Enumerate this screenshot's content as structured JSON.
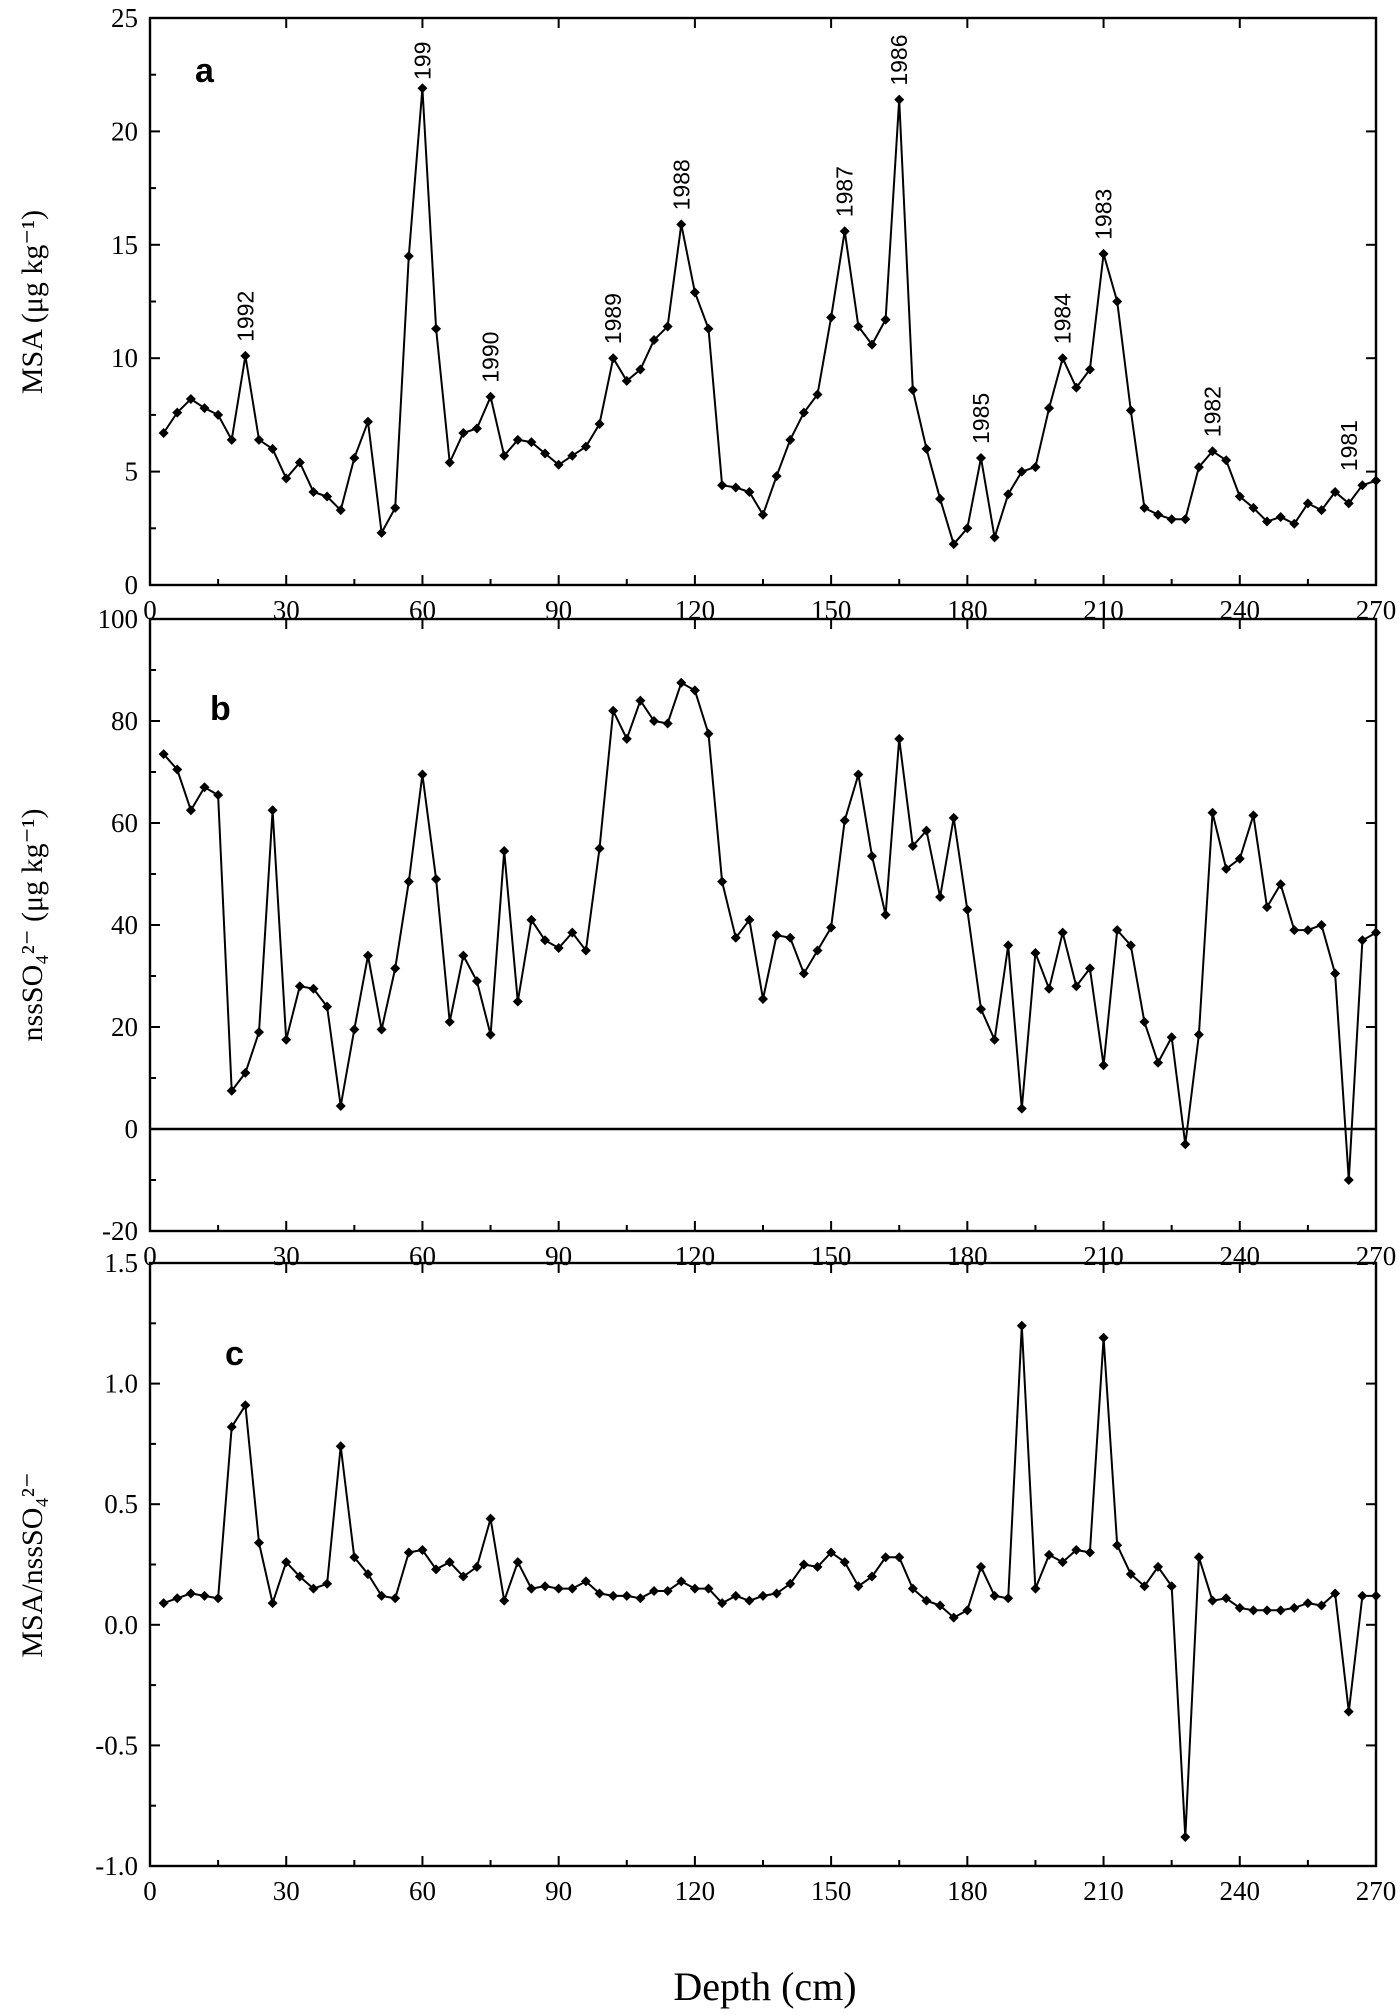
{
  "figure": {
    "xlabel": "Depth (cm)"
  },
  "chart_data": [
    {
      "type": "line",
      "panel": "a",
      "xlabel": "",
      "ylabel": "MSA (μg kg⁻¹)",
      "xlim": [
        0,
        270
      ],
      "ylim": [
        0,
        25
      ],
      "xticks": [
        0,
        30,
        60,
        90,
        120,
        150,
        180,
        210,
        240,
        270
      ],
      "yticks": [
        0,
        5,
        10,
        15,
        20,
        25
      ],
      "ytick_labels": [
        "0",
        "5",
        "10",
        "15",
        "20",
        "25"
      ],
      "series": [
        {
          "x": [
            3,
            6,
            9,
            12,
            15,
            18,
            21,
            24,
            27,
            30,
            33,
            36,
            39,
            42,
            45,
            48,
            51,
            54,
            57,
            60,
            63,
            66,
            69,
            72,
            75,
            78,
            81,
            84,
            87,
            90,
            93,
            96,
            99,
            102,
            105,
            108,
            111,
            114,
            117,
            120,
            123,
            126,
            129,
            132,
            135,
            138,
            141,
            144,
            147,
            150,
            153,
            156,
            159,
            162,
            165,
            168,
            171,
            174,
            177,
            180,
            183,
            186,
            189,
            192,
            195,
            198,
            201,
            204,
            207,
            210,
            213,
            216,
            219,
            222,
            225,
            228,
            231,
            234,
            237,
            240,
            243,
            246,
            249,
            252,
            255,
            258,
            261,
            264,
            267,
            270
          ],
          "y": [
            6.7,
            7.6,
            8.2,
            7.8,
            7.5,
            6.4,
            10.1,
            6.4,
            6.0,
            4.7,
            5.4,
            4.1,
            3.9,
            3.3,
            5.6,
            7.2,
            2.3,
            3.4,
            14.5,
            21.9,
            11.3,
            5.4,
            6.7,
            6.9,
            8.3,
            5.7,
            6.4,
            6.3,
            5.8,
            5.3,
            5.7,
            6.1,
            7.1,
            10.0,
            9.0,
            9.5,
            10.8,
            11.4,
            15.9,
            12.9,
            11.3,
            4.4,
            4.3,
            4.1,
            3.1,
            4.8,
            6.4,
            7.6,
            8.4,
            11.8,
            15.6,
            11.4,
            10.6,
            11.7,
            21.4,
            8.6,
            6.0,
            3.8,
            1.8,
            2.5,
            5.6,
            2.1,
            4.0,
            5.0,
            5.2,
            7.8,
            10.0,
            8.7,
            9.5,
            14.6,
            12.5,
            7.7,
            3.4,
            3.1,
            2.9,
            2.9,
            5.2,
            5.9,
            5.5,
            3.9,
            3.4,
            2.8,
            3.0,
            2.7,
            3.6,
            3.3,
            4.1,
            3.6,
            4.4,
            4.6
          ]
        }
      ],
      "annotations": [
        {
          "text": "1992",
          "x": 21,
          "y": 10.1
        },
        {
          "text": "199",
          "x": 60,
          "y": 21.9
        },
        {
          "text": "1990",
          "x": 75,
          "y": 8.3
        },
        {
          "text": "1989",
          "x": 102,
          "y": 10.0
        },
        {
          "text": "1988",
          "x": 117,
          "y": 15.9
        },
        {
          "text": "1987",
          "x": 153,
          "y": 15.6
        },
        {
          "text": "1986",
          "x": 165,
          "y": 21.4
        },
        {
          "text": "1985",
          "x": 183,
          "y": 5.6
        },
        {
          "text": "1984",
          "x": 201,
          "y": 10.0
        },
        {
          "text": "1983",
          "x": 210,
          "y": 14.6
        },
        {
          "text": "1982",
          "x": 234,
          "y": 5.9
        },
        {
          "text": "1981",
          "x": 264,
          "y": 4.4
        }
      ]
    },
    {
      "type": "line",
      "panel": "b",
      "xlabel": "",
      "ylabel": "nssSO₄²⁻ (μg kg⁻¹)",
      "xlim": [
        0,
        270
      ],
      "ylim": [
        -20,
        100
      ],
      "xticks": [
        0,
        30,
        60,
        90,
        120,
        150,
        180,
        210,
        240,
        270
      ],
      "yticks": [
        -20,
        0,
        20,
        40,
        60,
        80,
        100
      ],
      "ytick_labels": [
        "-20",
        "0",
        "20",
        "40",
        "60",
        "80",
        "100"
      ],
      "zero_line": true,
      "series": [
        {
          "x": [
            3,
            6,
            9,
            12,
            15,
            18,
            21,
            24,
            27,
            30,
            33,
            36,
            39,
            42,
            45,
            48,
            51,
            54,
            57,
            60,
            63,
            66,
            69,
            72,
            75,
            78,
            81,
            84,
            87,
            90,
            93,
            96,
            99,
            102,
            105,
            108,
            111,
            114,
            117,
            120,
            123,
            126,
            129,
            132,
            135,
            138,
            141,
            144,
            147,
            150,
            153,
            156,
            159,
            162,
            165,
            168,
            171,
            174,
            177,
            180,
            183,
            186,
            189,
            192,
            195,
            198,
            201,
            204,
            207,
            210,
            213,
            216,
            219,
            222,
            225,
            228,
            231,
            234,
            237,
            240,
            243,
            246,
            249,
            252,
            255,
            258,
            261,
            264,
            267,
            270
          ],
          "y": [
            73.5,
            70.5,
            62.5,
            67,
            65.5,
            7.5,
            11,
            19,
            62.5,
            17.5,
            28,
            27.5,
            24,
            4.5,
            19.5,
            34,
            19.5,
            31.5,
            48.5,
            69.5,
            49,
            21,
            34,
            29,
            18.5,
            54.5,
            25,
            41,
            37,
            35.5,
            38.5,
            35,
            55,
            82,
            76.5,
            84,
            80,
            79.5,
            87.5,
            86,
            77.5,
            48.5,
            37.5,
            41,
            25.5,
            38,
            37.5,
            30.5,
            35,
            39.5,
            60.5,
            69.5,
            53.5,
            42,
            76.5,
            55.5,
            58.5,
            45.5,
            61,
            43,
            23.5,
            17.5,
            36,
            4,
            34.5,
            27.5,
            38.5,
            28,
            31.5,
            12.5,
            39,
            36,
            21,
            13,
            18,
            -3,
            18.5,
            62,
            51,
            53,
            61.5,
            43.5,
            48,
            39,
            39,
            40,
            30.5,
            -10,
            37,
            38.5
          ]
        }
      ]
    },
    {
      "type": "line",
      "panel": "c",
      "xlabel": "Depth (cm)",
      "ylabel": "MSA/nssSO₄²⁻",
      "xlim": [
        0,
        270
      ],
      "ylim": [
        -1.0,
        1.5
      ],
      "xticks": [
        0,
        30,
        60,
        90,
        120,
        150,
        180,
        210,
        240,
        270
      ],
      "yticks": [
        -1.0,
        -0.5,
        0.0,
        0.5,
        1.0,
        1.5
      ],
      "ytick_labels": [
        "-1.0",
        "-0.5",
        "0.0",
        "0.5",
        "1.0",
        "1.5"
      ],
      "series": [
        {
          "x": [
            3,
            6,
            9,
            12,
            15,
            18,
            21,
            24,
            27,
            30,
            33,
            36,
            39,
            42,
            45,
            48,
            51,
            54,
            57,
            60,
            63,
            66,
            69,
            72,
            75,
            78,
            81,
            84,
            87,
            90,
            93,
            96,
            99,
            102,
            105,
            108,
            111,
            114,
            117,
            120,
            123,
            126,
            129,
            132,
            135,
            138,
            141,
            144,
            147,
            150,
            153,
            156,
            159,
            162,
            165,
            168,
            171,
            174,
            177,
            180,
            183,
            186,
            189,
            192,
            195,
            198,
            201,
            204,
            207,
            210,
            213,
            216,
            219,
            222,
            225,
            228,
            231,
            234,
            237,
            240,
            243,
            246,
            249,
            252,
            255,
            258,
            261,
            264,
            267,
            270
          ],
          "y": [
            0.09,
            0.11,
            0.13,
            0.12,
            0.11,
            0.82,
            0.91,
            0.34,
            0.09,
            0.26,
            0.2,
            0.15,
            0.17,
            0.74,
            0.28,
            0.21,
            0.12,
            0.11,
            0.3,
            0.31,
            0.23,
            0.26,
            0.2,
            0.24,
            0.44,
            0.1,
            0.26,
            0.15,
            0.16,
            0.15,
            0.15,
            0.18,
            0.13,
            0.12,
            0.12,
            0.11,
            0.14,
            0.14,
            0.18,
            0.15,
            0.15,
            0.09,
            0.12,
            0.1,
            0.12,
            0.13,
            0.17,
            0.25,
            0.24,
            0.3,
            0.26,
            0.16,
            0.2,
            0.28,
            0.28,
            0.15,
            0.1,
            0.08,
            0.03,
            0.06,
            0.24,
            0.12,
            0.11,
            1.24,
            0.15,
            0.29,
            0.26,
            0.31,
            0.3,
            1.19,
            0.33,
            0.21,
            0.16,
            0.24,
            0.16,
            -0.88,
            0.28,
            0.1,
            0.11,
            0.07,
            0.06,
            0.06,
            0.06,
            0.07,
            0.09,
            0.08,
            0.13,
            -0.36,
            0.12,
            0.12
          ]
        }
      ]
    }
  ]
}
